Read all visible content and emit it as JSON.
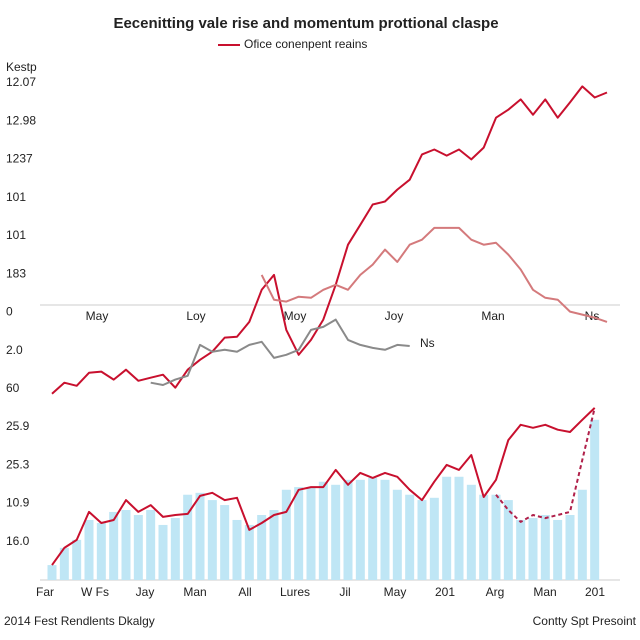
{
  "chart_data": {
    "type": "combo",
    "title": "Eecenitting vale rise and momentum prottional claspe",
    "y_label": "Kestp",
    "footer_left": "2014 Fest Rendlents Dkalgy",
    "footer_right": "Contty Spt Presoint",
    "annotation": "Ns",
    "ylim": [
      0,
      13.6
    ],
    "yticks": [
      {
        "value": 1,
        "label": "16.0"
      },
      {
        "value": 2,
        "label": "10.9"
      },
      {
        "value": 3,
        "label": "25.3"
      },
      {
        "value": 4,
        "label": "25.9"
      },
      {
        "value": 5,
        "label": "60"
      },
      {
        "value": 6,
        "label": "2.0"
      },
      {
        "value": 7,
        "label": "0"
      },
      {
        "value": 8,
        "label": "183"
      },
      {
        "value": 9,
        "label": "101"
      },
      {
        "value": 10,
        "label": "101"
      },
      {
        "value": 11,
        "label": "1237"
      },
      {
        "value": 12,
        "label": "12.98"
      },
      {
        "value": 13,
        "label": "12.07"
      }
    ],
    "x_labels_mid": [
      "May",
      "Loy",
      "Moy",
      "Joy",
      "Man",
      "Ns"
    ],
    "x_labels": [
      "Far",
      "W Fs",
      "Jay",
      "Man",
      "All",
      "Lures",
      "Jil",
      "May",
      "201",
      "Arg",
      "Man",
      "201"
    ],
    "series": [
      {
        "type": "bar",
        "color": "#bfe6f5",
        "values": [
          0.39,
          0.84,
          1.05,
          1.57,
          1.49,
          1.78,
          1.83,
          1.7,
          1.83,
          1.44,
          1.62,
          2.23,
          2.28,
          2.09,
          1.96,
          1.57,
          1.44,
          1.7,
          1.83,
          2.36,
          2.43,
          2.43,
          2.57,
          2.49,
          2.62,
          2.62,
          2.67,
          2.62,
          2.36,
          2.23,
          2.09,
          2.15,
          2.7,
          2.7,
          2.49,
          2.23,
          2.23,
          2.09,
          1.57,
          1.62,
          1.7,
          1.57,
          1.7,
          2.36,
          4.19,
          null
        ]
      },
      {
        "type": "line",
        "name": "Ofice conenpent reains",
        "color": "#c8102e",
        "values": [
          4.87,
          5.16,
          5.08,
          5.42,
          5.45,
          5.24,
          5.5,
          5.21,
          5.29,
          5.37,
          5.03,
          5.5,
          5.76,
          5.97,
          6.34,
          6.36,
          6.75,
          7.59,
          7.98,
          6.54,
          5.89,
          6.28,
          6.81,
          7.72,
          8.77,
          9.29,
          9.82,
          9.9,
          10.21,
          10.47,
          11.13,
          11.26,
          11.1,
          11.26,
          11.0,
          11.31,
          12.09,
          12.3,
          12.57,
          12.17,
          12.57,
          12.09,
          12.49,
          12.91,
          12.62,
          12.75
        ]
      },
      {
        "type": "line",
        "color": "#d47a7c",
        "values": [
          null,
          null,
          null,
          null,
          null,
          null,
          null,
          null,
          null,
          null,
          null,
          null,
          null,
          null,
          null,
          null,
          null,
          7.98,
          7.33,
          7.28,
          7.41,
          7.38,
          7.59,
          7.72,
          7.59,
          7.98,
          8.25,
          8.64,
          8.32,
          8.77,
          8.9,
          9.21,
          9.21,
          9.21,
          8.9,
          8.77,
          8.82,
          8.51,
          8.12,
          7.59,
          7.38,
          7.33,
          7.02,
          6.94,
          6.86,
          6.75
        ]
      },
      {
        "type": "line",
        "color": "#8a8a8a",
        "values": [
          null,
          null,
          null,
          null,
          null,
          null,
          null,
          null,
          5.16,
          5.1,
          5.24,
          5.34,
          6.15,
          5.97,
          6.02,
          5.97,
          6.15,
          6.23,
          5.81,
          5.89,
          6.02,
          6.54,
          6.62,
          6.81,
          6.28,
          6.15,
          6.07,
          6.02,
          6.15,
          6.12,
          null,
          null,
          null,
          null,
          null,
          null,
          null,
          null,
          null,
          null,
          null,
          null,
          null,
          null,
          null,
          null
        ]
      },
      {
        "type": "line",
        "color": "#c8102e",
        "values": [
          0.39,
          0.84,
          1.05,
          1.78,
          1.49,
          1.57,
          2.09,
          1.78,
          1.96,
          1.65,
          1.7,
          1.73,
          2.2,
          2.28,
          2.09,
          2.15,
          1.31,
          1.49,
          1.7,
          1.78,
          2.36,
          2.43,
          2.43,
          2.88,
          2.49,
          2.8,
          2.67,
          2.8,
          2.7,
          2.36,
          2.09,
          2.57,
          3.01,
          2.88,
          3.27,
          2.17,
          2.62,
          3.66,
          4.06,
          3.98,
          4.06,
          3.93,
          3.87,
          4.19,
          4.5,
          null
        ]
      },
      {
        "type": "line",
        "dashed": true,
        "color": "#b0204a",
        "values": [
          null,
          null,
          null,
          null,
          null,
          null,
          null,
          null,
          null,
          null,
          null,
          null,
          null,
          null,
          null,
          null,
          null,
          null,
          null,
          null,
          null,
          null,
          null,
          null,
          null,
          null,
          null,
          null,
          null,
          null,
          null,
          null,
          null,
          null,
          null,
          null,
          2.23,
          1.83,
          1.52,
          1.7,
          1.62,
          1.7,
          1.78,
          3.14,
          4.5,
          null
        ]
      }
    ]
  }
}
